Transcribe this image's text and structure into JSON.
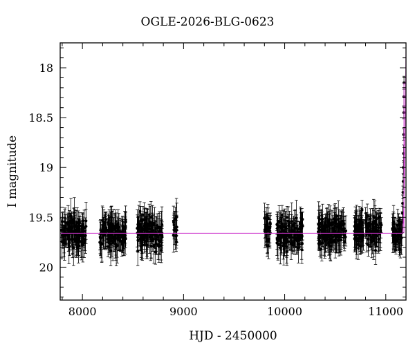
{
  "chart_data": {
    "type": "scatter",
    "title": "OGLE-2026-BLG-0623",
    "xlabel": "HJD - 2450000",
    "ylabel": "I magnitude",
    "xlim": [
      7780,
      11200
    ],
    "ylim": [
      20.33,
      17.75
    ],
    "y_inverted": true,
    "x_ticks": [
      8000,
      9000,
      10000,
      11000
    ],
    "y_ticks": [
      18,
      18.5,
      19,
      19.5,
      20
    ],
    "y_tick_labels": [
      "18",
      "18.5",
      "19",
      "19.5",
      "20"
    ],
    "baseline_magnitude": 19.66,
    "model_color": "#cc33cc",
    "point_color": "#000000",
    "seasons": [
      {
        "start": 7790,
        "end": 8040,
        "mean": 19.66,
        "scatter": 0.13
      },
      {
        "start": 8170,
        "end": 8430,
        "mean": 19.66,
        "scatter": 0.13
      },
      {
        "start": 8540,
        "end": 8790,
        "mean": 19.66,
        "scatter": 0.15
      },
      {
        "start": 8900,
        "end": 8935,
        "mean": 19.62,
        "scatter": 0.14
      },
      {
        "start": 9800,
        "end": 9860,
        "mean": 19.62,
        "scatter": 0.13
      },
      {
        "start": 9920,
        "end": 10180,
        "mean": 19.66,
        "scatter": 0.13
      },
      {
        "start": 10330,
        "end": 10610,
        "mean": 19.64,
        "scatter": 0.13
      },
      {
        "start": 10690,
        "end": 10960,
        "mean": 19.64,
        "scatter": 0.13
      },
      {
        "start": 11060,
        "end": 11160,
        "mean": 19.66,
        "scatter": 0.12
      }
    ],
    "rise_points": [
      {
        "x": 11163,
        "y": 19.55
      },
      {
        "x": 11165,
        "y": 19.46
      },
      {
        "x": 11167,
        "y": 19.36
      },
      {
        "x": 11170,
        "y": 19.25
      },
      {
        "x": 11172,
        "y": 19.14
      },
      {
        "x": 11174,
        "y": 19.0
      },
      {
        "x": 11176,
        "y": 18.86
      },
      {
        "x": 11177,
        "y": 18.67
      },
      {
        "x": 11178,
        "y": 18.45
      },
      {
        "x": 11179,
        "y": 18.29
      },
      {
        "x": 11180,
        "y": 18.15
      }
    ],
    "grid": false,
    "legend": "none"
  }
}
